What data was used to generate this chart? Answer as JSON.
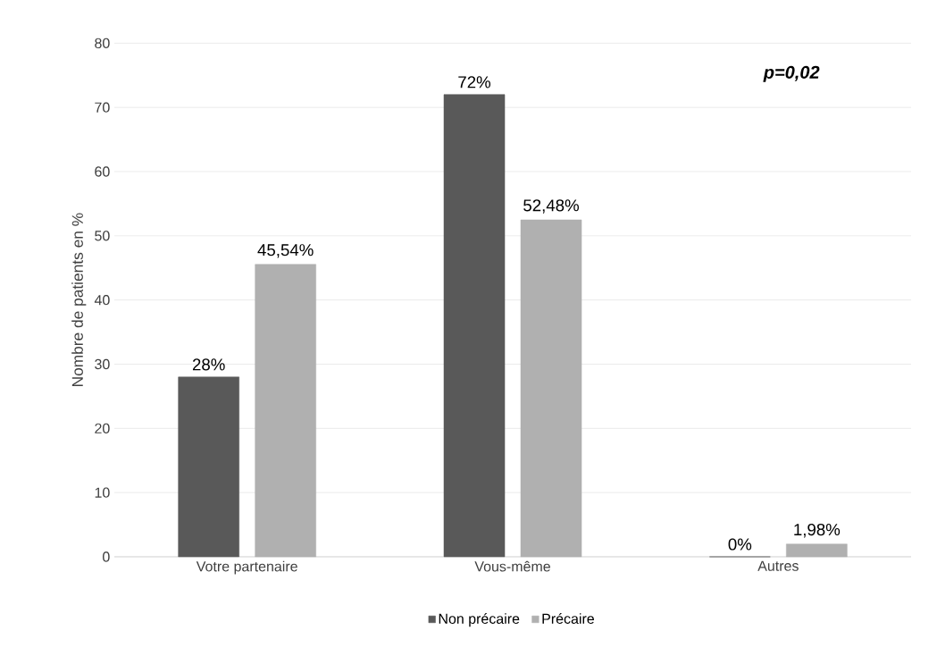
{
  "chart_data": {
    "type": "bar",
    "categories": [
      "Votre partenaire",
      "Vous-même",
      "Autres"
    ],
    "series": [
      {
        "name": "Non précaire",
        "color": "#595959",
        "values": [
          28,
          72,
          0
        ],
        "value_labels": [
          "28%",
          "72%",
          "0%"
        ]
      },
      {
        "name": "Précaire",
        "color": "#b0b0b0",
        "values": [
          45.54,
          52.48,
          1.98
        ],
        "value_labels": [
          "45,54%",
          "52,48%",
          "1,98%"
        ]
      }
    ],
    "ylabel": "Nombre de patients en %",
    "ylim": [
      0,
      80
    ],
    "yticks": [
      0,
      10,
      20,
      30,
      40,
      50,
      60,
      70,
      80
    ],
    "grid": "y",
    "legend": "bottom",
    "annotations": [
      "p=0,02"
    ]
  }
}
